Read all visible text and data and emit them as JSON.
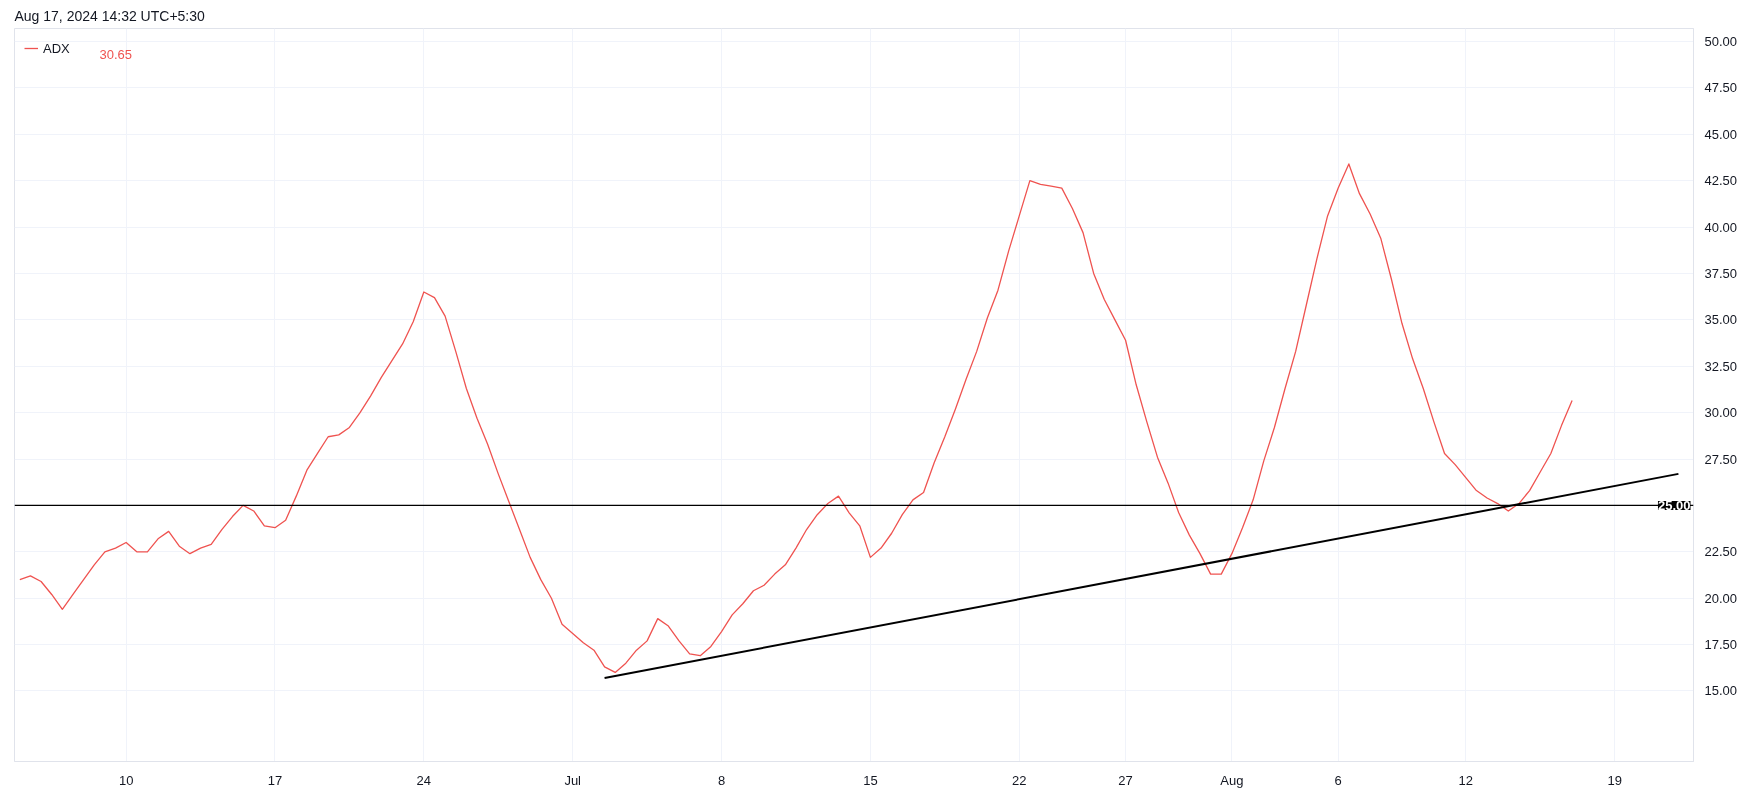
{
  "chart_data": {
    "type": "line",
    "title": "Aug 17, 2024 14:32 UTC+5:30",
    "annotations": [
      "30.65"
    ],
    "xlim": [
      "2024-06-04T18:00",
      "2024-08-22T17:00"
    ],
    "xticks": [
      {
        "value": "2024-06-10",
        "label": "10"
      },
      {
        "value": "2024-06-17",
        "label": "17"
      },
      {
        "value": "2024-06-24",
        "label": "24"
      },
      {
        "value": "2024-07-01",
        "label": "Jul"
      },
      {
        "value": "2024-07-08",
        "label": "8"
      },
      {
        "value": "2024-07-15",
        "label": "15"
      },
      {
        "value": "2024-07-22",
        "label": "22"
      },
      {
        "value": "2024-07-27",
        "label": "27"
      },
      {
        "value": "2024-08-01",
        "label": "Aug"
      },
      {
        "value": "2024-08-06",
        "label": "6"
      },
      {
        "value": "2024-08-12",
        "label": "12"
      },
      {
        "value": "2024-08-19",
        "label": "19"
      }
    ],
    "ylim": [
      11.2,
      50.7
    ],
    "yticks": [
      {
        "value": 15,
        "label": "15.00"
      },
      {
        "value": 17.5,
        "label": "17.50"
      },
      {
        "value": 20,
        "label": "20.00"
      },
      {
        "value": 22.5,
        "label": "22.50"
      },
      {
        "value": 25,
        "label": null
      },
      {
        "value": 27.5,
        "label": "27.50"
      },
      {
        "value": 30,
        "label": "30.00"
      },
      {
        "value": 32.5,
        "label": "32.50"
      },
      {
        "value": 35,
        "label": "35.00"
      },
      {
        "value": 37.5,
        "label": "37.50"
      },
      {
        "value": 40,
        "label": "40.00"
      },
      {
        "value": 42.5,
        "label": "42.50"
      },
      {
        "value": 45,
        "label": "45.00"
      },
      {
        "value": 47.5,
        "label": "47.50"
      },
      {
        "value": 50,
        "label": "50.00"
      }
    ],
    "grid": true,
    "legend": "top left",
    "ref_lines": [
      {
        "axis": "y",
        "value": 25,
        "label": "25.00",
        "color": "#000000"
      }
    ],
    "x": [
      "2024-06-05T00:00",
      "2024-06-05T12:00",
      "2024-06-06T00:00",
      "2024-06-06T12:00",
      "2024-06-07T00:00",
      "2024-06-07T12:00",
      "2024-06-08T00:00",
      "2024-06-08T12:00",
      "2024-06-09T00:00",
      "2024-06-09T12:00",
      "2024-06-10T00:00",
      "2024-06-10T12:00",
      "2024-06-11T00:00",
      "2024-06-11T12:00",
      "2024-06-12T00:00",
      "2024-06-12T12:00",
      "2024-06-13T00:00",
      "2024-06-13T12:00",
      "2024-06-14T00:00",
      "2024-06-14T12:00",
      "2024-06-15T00:00",
      "2024-06-15T12:00",
      "2024-06-16T00:00",
      "2024-06-16T12:00",
      "2024-06-17T00:00",
      "2024-06-17T12:00",
      "2024-06-18T00:00",
      "2024-06-18T12:00",
      "2024-06-19T00:00",
      "2024-06-19T12:00",
      "2024-06-20T00:00",
      "2024-06-20T12:00",
      "2024-06-21T00:00",
      "2024-06-21T12:00",
      "2024-06-22T00:00",
      "2024-06-22T12:00",
      "2024-06-23T00:00",
      "2024-06-23T12:00",
      "2024-06-24T00:00",
      "2024-06-24T12:00",
      "2024-06-25T00:00",
      "2024-06-25T12:00",
      "2024-06-26T00:00",
      "2024-06-26T12:00",
      "2024-06-27T00:00",
      "2024-06-27T12:00",
      "2024-06-28T00:00",
      "2024-06-28T12:00",
      "2024-06-29T00:00",
      "2024-06-29T12:00",
      "2024-06-30T00:00",
      "2024-06-30T12:00",
      "2024-07-01T00:00",
      "2024-07-01T12:00",
      "2024-07-02T00:00",
      "2024-07-02T12:00",
      "2024-07-03T00:00",
      "2024-07-03T12:00",
      "2024-07-04T00:00",
      "2024-07-04T12:00",
      "2024-07-05T00:00",
      "2024-07-05T12:00",
      "2024-07-06T00:00",
      "2024-07-06T12:00",
      "2024-07-07T00:00",
      "2024-07-07T12:00",
      "2024-07-08T00:00",
      "2024-07-08T12:00",
      "2024-07-09T00:00",
      "2024-07-09T12:00",
      "2024-07-10T00:00",
      "2024-07-10T12:00",
      "2024-07-11T00:00",
      "2024-07-11T12:00",
      "2024-07-12T00:00",
      "2024-07-12T12:00",
      "2024-07-13T00:00",
      "2024-07-13T12:00",
      "2024-07-14T00:00",
      "2024-07-14T12:00",
      "2024-07-15T00:00",
      "2024-07-15T12:00",
      "2024-07-16T00:00",
      "2024-07-16T12:00",
      "2024-07-17T00:00",
      "2024-07-17T12:00",
      "2024-07-18T00:00",
      "2024-07-18T12:00",
      "2024-07-19T00:00",
      "2024-07-19T12:00",
      "2024-07-20T00:00",
      "2024-07-20T12:00",
      "2024-07-21T00:00",
      "2024-07-21T12:00",
      "2024-07-22T00:00",
      "2024-07-22T12:00",
      "2024-07-23T00:00",
      "2024-07-23T12:00",
      "2024-07-24T00:00",
      "2024-07-24T12:00",
      "2024-07-25T00:00",
      "2024-07-25T12:00",
      "2024-07-26T00:00",
      "2024-07-26T12:00",
      "2024-07-27T00:00",
      "2024-07-27T12:00",
      "2024-07-28T00:00",
      "2024-07-28T12:00",
      "2024-07-29T00:00",
      "2024-07-29T12:00",
      "2024-07-30T00:00",
      "2024-07-30T12:00",
      "2024-07-31T00:00",
      "2024-07-31T12:00",
      "2024-08-01T00:00",
      "2024-08-01T12:00",
      "2024-08-02T00:00",
      "2024-08-02T12:00",
      "2024-08-03T00:00",
      "2024-08-03T12:00",
      "2024-08-04T00:00",
      "2024-08-04T12:00",
      "2024-08-05T00:00",
      "2024-08-05T12:00",
      "2024-08-06T00:00",
      "2024-08-06T12:00",
      "2024-08-07T00:00",
      "2024-08-07T12:00",
      "2024-08-08T00:00",
      "2024-08-08T12:00",
      "2024-08-09T00:00",
      "2024-08-09T12:00",
      "2024-08-10T00:00",
      "2024-08-10T12:00",
      "2024-08-11T00:00",
      "2024-08-11T12:00",
      "2024-08-12T00:00",
      "2024-08-12T12:00",
      "2024-08-13T00:00",
      "2024-08-13T12:00",
      "2024-08-14T00:00",
      "2024-08-14T12:00",
      "2024-08-15T00:00",
      "2024-08-15T12:00",
      "2024-08-16T00:00",
      "2024-08-16T12:00",
      "2024-08-17T00:00"
    ],
    "series": [
      {
        "name": "ADX",
        "color": "#ef5350",
        "values": [
          21.0,
          21.2,
          20.9,
          20.2,
          19.4,
          20.2,
          21.0,
          21.8,
          22.5,
          22.7,
          23.0,
          22.5,
          22.5,
          23.2,
          23.6,
          22.8,
          22.4,
          22.7,
          22.9,
          23.7,
          24.4,
          25.0,
          24.7,
          23.9,
          23.8,
          24.2,
          25.5,
          26.9,
          27.8,
          28.7,
          28.8,
          29.2,
          30.0,
          30.9,
          31.9,
          32.8,
          33.7,
          34.9,
          36.5,
          36.2,
          35.2,
          33.3,
          31.3,
          29.7,
          28.3,
          26.7,
          25.2,
          23.7,
          22.2,
          21.0,
          20.0,
          18.6,
          18.1,
          17.6,
          17.2,
          16.3,
          16.0,
          16.5,
          17.2,
          17.7,
          18.9,
          18.5,
          17.7,
          17.0,
          16.9,
          17.4,
          18.2,
          19.1,
          19.7,
          20.4,
          20.7,
          21.3,
          21.8,
          22.7,
          23.7,
          24.5,
          25.1,
          25.5,
          24.6,
          23.9,
          22.2,
          22.7,
          23.5,
          24.5,
          25.3,
          25.7,
          27.3,
          28.7,
          30.2,
          31.8,
          33.3,
          35.1,
          36.6,
          38.7,
          40.6,
          42.5,
          42.3,
          42.2,
          42.1,
          41.0,
          39.7,
          37.5,
          36.1,
          35.0,
          33.9,
          31.5,
          29.5,
          27.6,
          26.2,
          24.6,
          23.4,
          22.4,
          21.3,
          21.3,
          22.4,
          23.8,
          25.3,
          27.4,
          29.2,
          31.3,
          33.3,
          35.8,
          38.3,
          40.6,
          42.1,
          43.4,
          41.8,
          40.7,
          39.4,
          37.2,
          34.8,
          32.9,
          31.3,
          29.5,
          27.8,
          27.2,
          26.5,
          25.8,
          25.4,
          25.1,
          24.7,
          25.1,
          25.8,
          26.8,
          27.8,
          29.3,
          30.65
        ]
      },
      {
        "type": "line",
        "color": "#000000",
        "x": [
          "2024-07-02T12:00",
          "2024-08-22T00:00"
        ],
        "values": [
          15.7,
          26.7
        ]
      }
    ]
  }
}
